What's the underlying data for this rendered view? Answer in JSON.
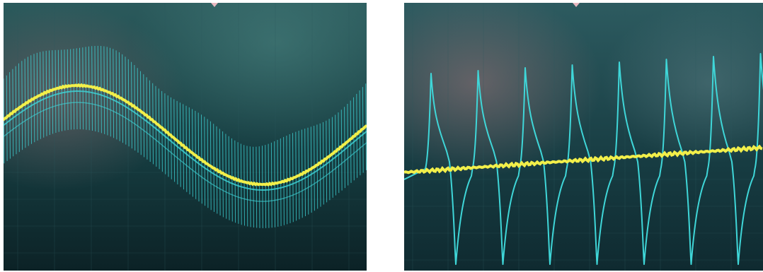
{
  "figure": {
    "panels": [
      {
        "id": "left",
        "description_visible_text": "",
        "channel_1_color": "#f2ef4a",
        "channel_2_color": "#3fd6d8",
        "channel_1_shape": "sine",
        "channel_2_shape": "dense-sawtooth-modulated-by-sine"
      },
      {
        "id": "right",
        "channel_1_color": "#f2ef4a",
        "channel_2_color": "#3fd6d8",
        "channel_1_shape": "rising-ramp",
        "channel_2_shape": "spike-train",
        "spike_count": 8
      }
    ],
    "screen_background": "#12383c",
    "grid_color": "#2d5a5e"
  }
}
